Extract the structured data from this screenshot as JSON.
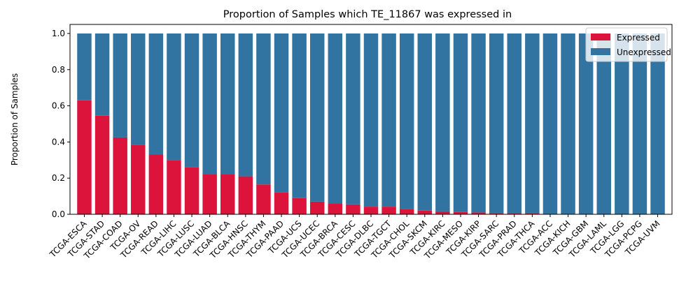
{
  "chart_data": {
    "type": "bar",
    "stacked": true,
    "title": "Proportion of Samples which TE_11867 was expressed in",
    "xlabel": "",
    "ylabel": "Proportion of Samples",
    "ylim": [
      0,
      1.05
    ],
    "yticks": [
      "0.0",
      "0.2",
      "0.4",
      "0.6",
      "0.8",
      "1.0"
    ],
    "legend_position": "top-right",
    "categories": [
      "TCGA-ESCA",
      "TCGA-STAD",
      "TCGA-COAD",
      "TCGA-OV",
      "TCGA-READ",
      "TCGA-LIHC",
      "TCGA-LUSC",
      "TCGA-LUAD",
      "TCGA-BLCA",
      "TCGA-HNSC",
      "TCGA-THYM",
      "TCGA-PAAD",
      "TCGA-UCS",
      "TCGA-UCEC",
      "TCGA-BRCA",
      "TCGA-CESC",
      "TCGA-DLBC",
      "TCGA-TGCT",
      "TCGA-CHOL",
      "TCGA-SKCM",
      "TCGA-KIRC",
      "TCGA-MESO",
      "TCGA-KIRP",
      "TCGA-SARC",
      "TCGA-PRAD",
      "TCGA-THCA",
      "TCGA-ACC",
      "TCGA-KICH",
      "TCGA-GBM",
      "TCGA-LAML",
      "TCGA-LGG",
      "TCGA-PCPG",
      "TCGA-UVM"
    ],
    "series": [
      {
        "name": "Expressed",
        "color": "#dc143c",
        "values": [
          0.63,
          0.545,
          0.425,
          0.385,
          0.33,
          0.3,
          0.26,
          0.22,
          0.22,
          0.21,
          0.165,
          0.12,
          0.09,
          0.07,
          0.06,
          0.055,
          0.042,
          0.042,
          0.03,
          0.02,
          0.016,
          0.012,
          0.01,
          0.004,
          0.004,
          0.004,
          0,
          0,
          0,
          0,
          0,
          0,
          0
        ]
      },
      {
        "name": "Unexpressed",
        "color": "#3274a1",
        "values": [
          0.37,
          0.455,
          0.575,
          0.615,
          0.67,
          0.7,
          0.74,
          0.78,
          0.78,
          0.79,
          0.835,
          0.88,
          0.91,
          0.93,
          0.94,
          0.945,
          0.958,
          0.958,
          0.97,
          0.98,
          0.984,
          0.988,
          0.99,
          0.996,
          0.996,
          0.996,
          1,
          1,
          1,
          1,
          1,
          1,
          1
        ]
      }
    ]
  }
}
